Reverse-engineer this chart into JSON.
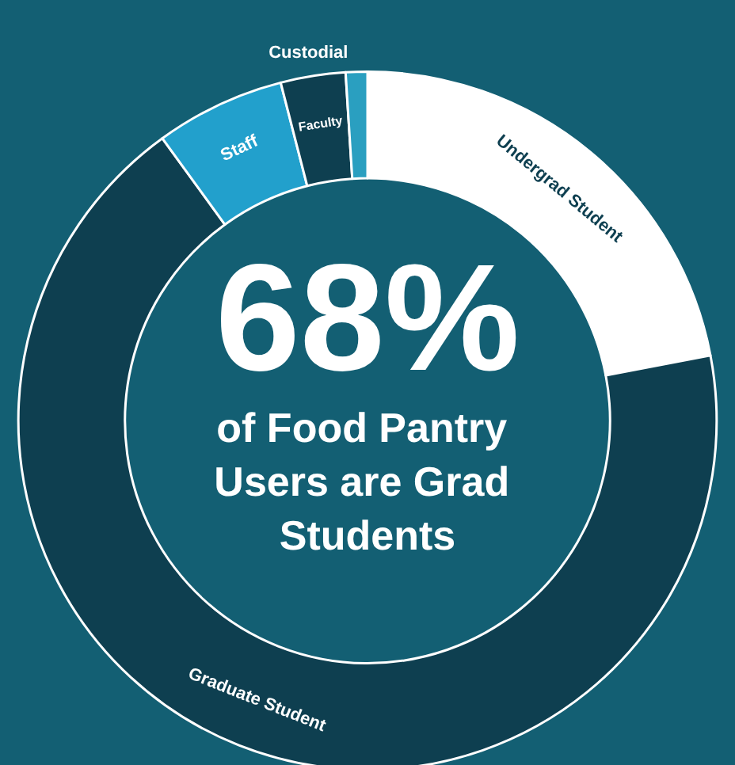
{
  "chart_data": {
    "type": "donut",
    "title": "68%",
    "subtitle": "of Food Pantry Users are Grad Students",
    "categories": [
      "Undergrad Student",
      "Graduate Student",
      "Staff",
      "Faculty",
      "Custodial"
    ],
    "values": [
      22,
      68,
      6,
      3,
      1
    ],
    "colors": [
      "#ffffff",
      "#0e3f50",
      "#22a0cc",
      "#0e3f50",
      "#2a9fc0"
    ],
    "legend": false
  }
}
